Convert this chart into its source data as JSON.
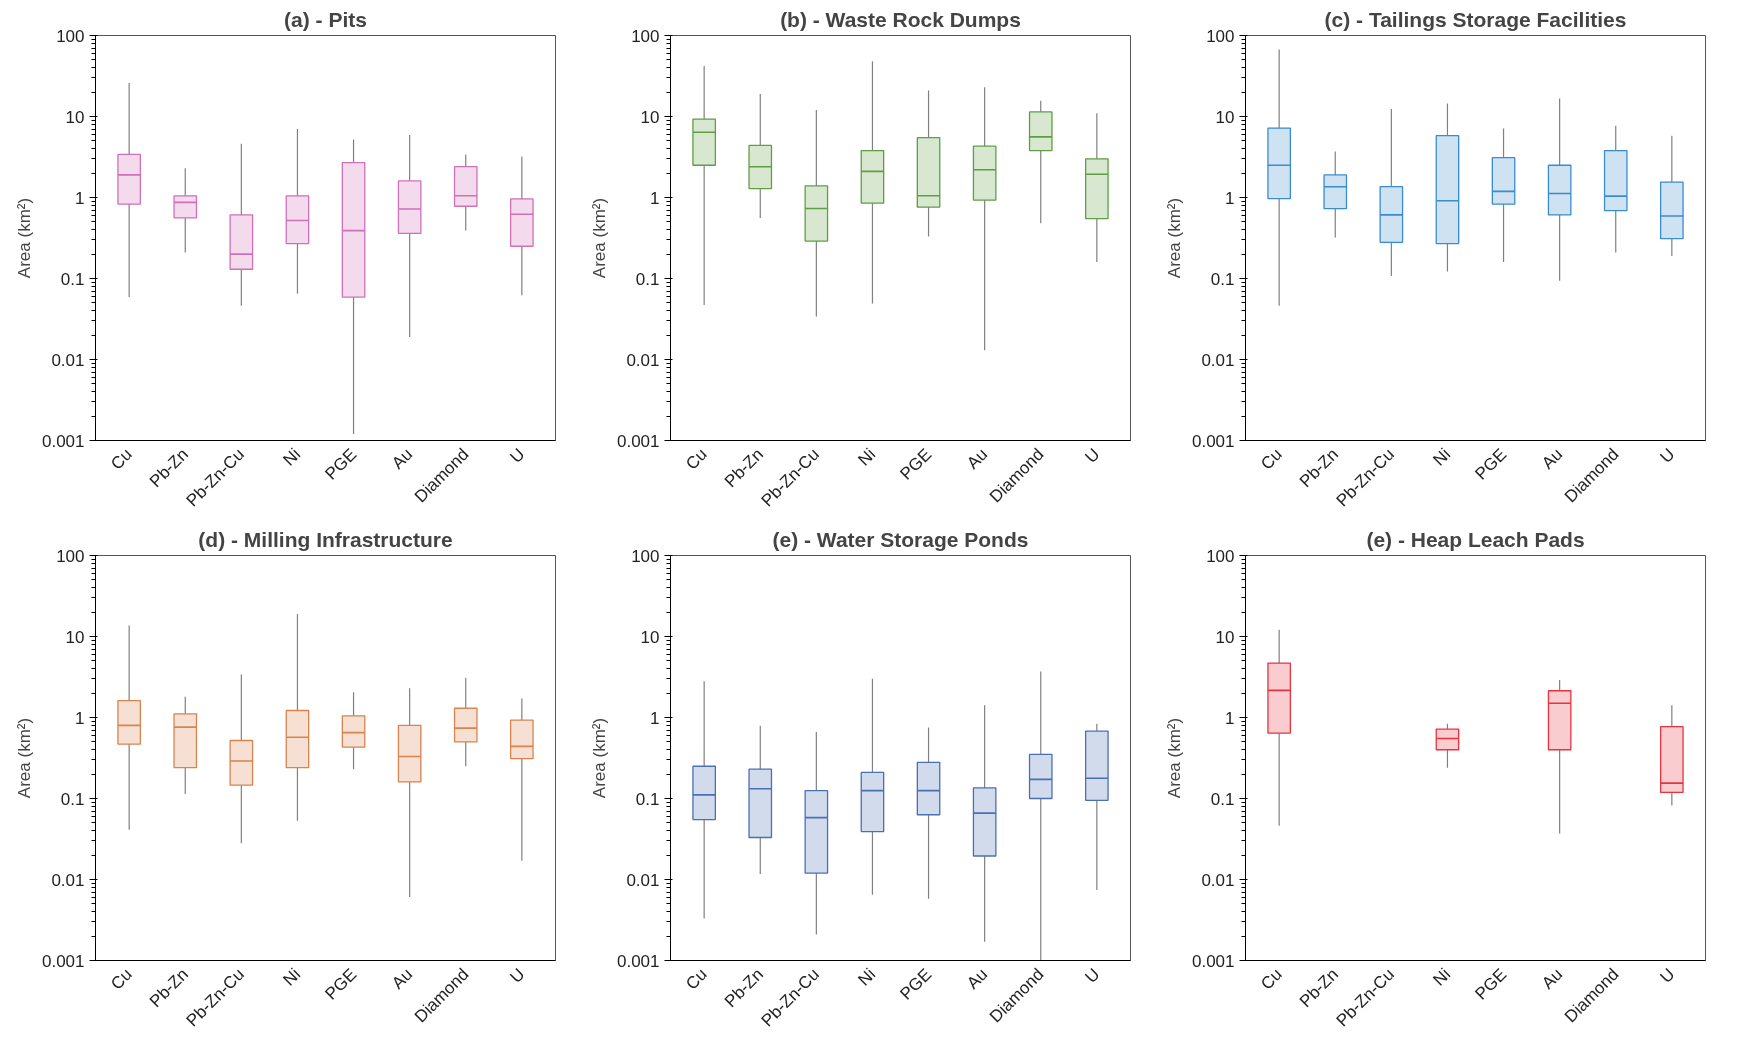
{
  "chart_data": [
    {
      "type": "box",
      "title": "(a) - Pits",
      "ylabel": "Area (km²)",
      "log": true,
      "ylim": [
        0.001,
        100
      ],
      "yticks": [
        0.001,
        0.01,
        0.1,
        1,
        10,
        100
      ],
      "color": "#d070b8",
      "categories": [
        "Cu",
        "Pb-Zn",
        "Pb-Zn-Cu",
        "Ni",
        "PGE",
        "Au",
        "Diamond",
        "U"
      ],
      "boxes": [
        {
          "low": 0.059,
          "q1": 0.83,
          "median": 1.9,
          "q3": 3.4,
          "high": 26
        },
        {
          "low": 0.21,
          "q1": 0.56,
          "median": 0.87,
          "q3": 1.05,
          "high": 2.3
        },
        {
          "low": 0.046,
          "q1": 0.13,
          "median": 0.2,
          "q3": 0.61,
          "high": 4.6
        },
        {
          "low": 0.065,
          "q1": 0.27,
          "median": 0.52,
          "q3": 1.05,
          "high": 7.0
        },
        {
          "low": 0.0012,
          "q1": 0.059,
          "median": 0.39,
          "q3": 2.7,
          "high": 5.2
        },
        {
          "low": 0.019,
          "q1": 0.36,
          "median": 0.72,
          "q3": 1.6,
          "high": 5.9
        },
        {
          "low": 0.39,
          "q1": 0.78,
          "median": 1.05,
          "q3": 2.4,
          "high": 3.4
        },
        {
          "low": 0.062,
          "q1": 0.25,
          "median": 0.62,
          "q3": 0.96,
          "high": 3.2
        }
      ]
    },
    {
      "type": "box",
      "title": "(b) - Waste Rock Dumps",
      "ylabel": "Area (km²)",
      "log": true,
      "ylim": [
        0.001,
        100
      ],
      "yticks": [
        0.001,
        0.01,
        0.1,
        1,
        10,
        100
      ],
      "color": "#5f9e45",
      "categories": [
        "Cu",
        "Pb-Zn",
        "Pb-Zn-Cu",
        "Ni",
        "PGE",
        "Au",
        "Diamond",
        "U"
      ],
      "boxes": [
        {
          "low": 0.047,
          "q1": 2.5,
          "median": 6.4,
          "q3": 9.3,
          "high": 42
        },
        {
          "low": 0.56,
          "q1": 1.29,
          "median": 2.4,
          "q3": 4.4,
          "high": 19
        },
        {
          "low": 0.034,
          "q1": 0.29,
          "median": 0.73,
          "q3": 1.39,
          "high": 12
        },
        {
          "low": 0.049,
          "q1": 0.85,
          "median": 2.1,
          "q3": 3.8,
          "high": 48
        },
        {
          "low": 0.33,
          "q1": 0.76,
          "median": 1.05,
          "q3": 5.5,
          "high": 21
        },
        {
          "low": 0.013,
          "q1": 0.93,
          "median": 2.2,
          "q3": 4.3,
          "high": 23
        },
        {
          "low": 0.48,
          "q1": 3.8,
          "median": 5.6,
          "q3": 11.4,
          "high": 15.7
        },
        {
          "low": 0.16,
          "q1": 0.55,
          "median": 1.94,
          "q3": 3.0,
          "high": 11
        }
      ]
    },
    {
      "type": "box",
      "title": "(c) - Tailings Storage Facilities",
      "ylabel": "Area (km²)",
      "log": true,
      "ylim": [
        0.001,
        100
      ],
      "yticks": [
        0.001,
        0.01,
        0.1,
        1,
        10,
        100
      ],
      "color": "#3a8ccc",
      "categories": [
        "Cu",
        "Pb-Zn",
        "Pb-Zn-Cu",
        "Ni",
        "PGE",
        "Au",
        "Diamond",
        "U"
      ],
      "boxes": [
        {
          "low": 0.046,
          "q1": 0.97,
          "median": 2.5,
          "q3": 7.2,
          "high": 67
        },
        {
          "low": 0.32,
          "q1": 0.73,
          "median": 1.36,
          "q3": 1.9,
          "high": 3.7
        },
        {
          "low": 0.107,
          "q1": 0.28,
          "median": 0.61,
          "q3": 1.36,
          "high": 12.4
        },
        {
          "low": 0.122,
          "q1": 0.27,
          "median": 0.91,
          "q3": 5.8,
          "high": 14.5
        },
        {
          "low": 0.16,
          "q1": 0.83,
          "median": 1.19,
          "q3": 3.1,
          "high": 7.1
        },
        {
          "low": 0.094,
          "q1": 0.61,
          "median": 1.12,
          "q3": 2.5,
          "high": 16.7
        },
        {
          "low": 0.21,
          "q1": 0.69,
          "median": 1.04,
          "q3": 3.8,
          "high": 7.7
        },
        {
          "low": 0.19,
          "q1": 0.31,
          "median": 0.59,
          "q3": 1.55,
          "high": 5.8
        }
      ]
    },
    {
      "type": "box",
      "title": "(d) - Milling Infrastructure",
      "ylabel": "Area (km²)",
      "log": true,
      "ylim": [
        0.001,
        100
      ],
      "yticks": [
        0.001,
        0.01,
        0.1,
        1,
        10,
        100
      ],
      "color": "#d9834f",
      "categories": [
        "Cu",
        "Pb-Zn",
        "Pb-Zn-Cu",
        "Ni",
        "PGE",
        "Au",
        "Diamond",
        "U"
      ],
      "boxes": [
        {
          "low": 0.041,
          "q1": 0.47,
          "median": 0.8,
          "q3": 1.62,
          "high": 13.7
        },
        {
          "low": 0.114,
          "q1": 0.24,
          "median": 0.76,
          "q3": 1.11,
          "high": 1.8
        },
        {
          "low": 0.028,
          "q1": 0.146,
          "median": 0.29,
          "q3": 0.52,
          "high": 3.4
        },
        {
          "low": 0.053,
          "q1": 0.24,
          "median": 0.57,
          "q3": 1.22,
          "high": 19
        },
        {
          "low": 0.23,
          "q1": 0.43,
          "median": 0.65,
          "q3": 1.05,
          "high": 2.05
        },
        {
          "low": 0.0061,
          "q1": 0.16,
          "median": 0.33,
          "q3": 0.8,
          "high": 2.3
        },
        {
          "low": 0.25,
          "q1": 0.5,
          "median": 0.74,
          "q3": 1.3,
          "high": 3.1
        },
        {
          "low": 0.017,
          "q1": 0.31,
          "median": 0.44,
          "q3": 0.93,
          "high": 1.72
        }
      ]
    },
    {
      "type": "box",
      "title": "(e) - Water Storage Ponds",
      "ylabel": "Area (km²)",
      "log": true,
      "ylim": [
        0.001,
        100
      ],
      "yticks": [
        0.001,
        0.01,
        0.1,
        1,
        10,
        100
      ],
      "color": "#4a6fb5",
      "categories": [
        "Cu",
        "Pb-Zn",
        "Pb-Zn-Cu",
        "Ni",
        "PGE",
        "Au",
        "Diamond",
        "U"
      ],
      "boxes": [
        {
          "low": 0.0033,
          "q1": 0.055,
          "median": 0.111,
          "q3": 0.25,
          "high": 2.8
        },
        {
          "low": 0.0117,
          "q1": 0.033,
          "median": 0.132,
          "q3": 0.23,
          "high": 0.79
        },
        {
          "low": 0.0021,
          "q1": 0.012,
          "median": 0.058,
          "q3": 0.125,
          "high": 0.66
        },
        {
          "low": 0.0065,
          "q1": 0.039,
          "median": 0.125,
          "q3": 0.21,
          "high": 3.0
        },
        {
          "low": 0.0058,
          "q1": 0.063,
          "median": 0.125,
          "q3": 0.28,
          "high": 0.75
        },
        {
          "low": 0.0017,
          "q1": 0.0195,
          "median": 0.066,
          "q3": 0.135,
          "high": 1.42
        },
        {
          "low": 0.001,
          "q1": 0.1,
          "median": 0.172,
          "q3": 0.35,
          "high": 3.7
        },
        {
          "low": 0.0074,
          "q1": 0.095,
          "median": 0.178,
          "q3": 0.68,
          "high": 0.84
        }
      ]
    },
    {
      "type": "box",
      "title": "(e) - Heap Leach Pads",
      "ylabel": "Area (km²)",
      "log": true,
      "ylim": [
        0.001,
        100
      ],
      "yticks": [
        0.001,
        0.01,
        0.1,
        1,
        10,
        100
      ],
      "color": "#e8333f",
      "categories": [
        "Cu",
        "Pb-Zn",
        "Pb-Zn-Cu",
        "Ni",
        "PGE",
        "Au",
        "Diamond",
        "U"
      ],
      "boxes": [
        {
          "low": 0.046,
          "q1": 0.64,
          "median": 2.16,
          "q3": 4.7,
          "high": 12.1
        },
        null,
        null,
        {
          "low": 0.24,
          "q1": 0.4,
          "median": 0.55,
          "q3": 0.72,
          "high": 0.84
        },
        null,
        {
          "low": 0.037,
          "q1": 0.4,
          "median": 1.5,
          "q3": 2.14,
          "high": 2.9
        },
        null,
        {
          "low": 0.082,
          "q1": 0.119,
          "median": 0.155,
          "q3": 0.77,
          "high": 1.42
        }
      ]
    }
  ]
}
